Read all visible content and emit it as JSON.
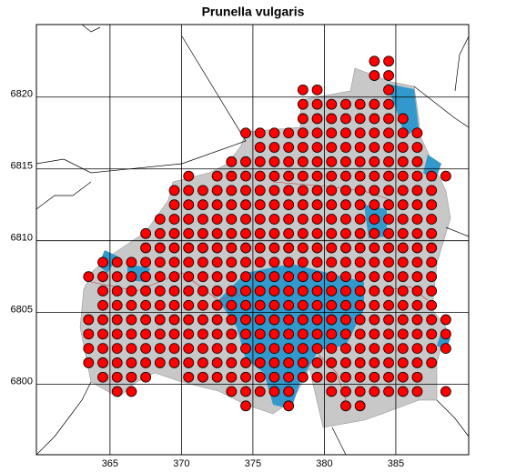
{
  "chart_data": {
    "type": "scatter",
    "title": "Prunella vulgaris",
    "color": "#ff0000",
    "xlim": [
      359.85,
      390.1
    ],
    "ylim": [
      6795.1,
      6825.05
    ],
    "xticks": [
      365,
      370,
      375,
      380,
      385
    ],
    "yticks": [
      6800,
      6805,
      6810,
      6815,
      6820
    ],
    "grid": true,
    "rows": [
      {
        "y": 6822.5,
        "x": [
          383.5,
          384.5
        ]
      },
      {
        "y": 6821.5,
        "x": [
          383.5,
          384.5
        ]
      },
      {
        "y": 6820.5,
        "x": [
          378.5,
          379.5,
          384.5
        ]
      },
      {
        "y": 6819.5,
        "x": [
          378.5,
          379.5,
          380.5,
          381.5,
          382.5,
          383.5,
          384.5
        ]
      },
      {
        "y": 6818.5,
        "x": [
          378.5,
          379.5,
          380.5,
          381.5,
          382.5,
          383.5,
          384.5,
          385.5
        ]
      },
      {
        "y": 6817.5,
        "x": [
          374.5,
          375.5,
          376.5,
          377.5,
          378.5,
          379.5,
          380.5,
          381.5,
          382.5,
          383.5,
          384.5,
          385.5,
          386.5
        ]
      },
      {
        "y": 6816.5,
        "x": [
          375.5,
          376.5,
          377.5,
          378.5,
          379.5,
          380.5,
          381.5,
          382.5,
          383.5,
          384.5,
          385.5,
          386.5
        ]
      },
      {
        "y": 6815.5,
        "x": [
          373.5,
          374.5,
          375.5,
          376.5,
          377.5,
          378.5,
          379.5,
          380.5,
          381.5,
          382.5,
          383.5,
          384.5,
          385.5,
          386.5
        ]
      },
      {
        "y": 6814.5,
        "x": [
          370.5,
          372.5,
          373.5,
          374.5,
          375.5,
          376.5,
          377.5,
          378.5,
          379.5,
          380.5,
          381.5,
          382.5,
          383.5,
          384.5,
          385.5,
          386.5,
          387.5,
          388.5
        ]
      },
      {
        "y": 6813.5,
        "x": [
          369.5,
          370.5,
          371.5,
          372.5,
          373.5,
          374.5,
          375.5,
          376.5,
          377.5,
          378.5,
          379.5,
          380.5,
          381.5,
          382.5,
          383.5,
          384.5,
          385.5,
          386.5,
          387.5
        ]
      },
      {
        "y": 6812.5,
        "x": [
          369.5,
          370.5,
          371.5,
          372.5,
          373.5,
          374.5,
          375.5,
          376.5,
          377.5,
          378.5,
          379.5,
          380.5,
          381.5,
          382.5,
          383.5,
          384.5,
          385.5,
          386.5,
          387.5
        ]
      },
      {
        "y": 6811.5,
        "x": [
          368.5,
          369.5,
          370.5,
          371.5,
          372.5,
          373.5,
          374.5,
          375.5,
          376.5,
          377.5,
          378.5,
          379.5,
          380.5,
          381.5,
          382.5,
          383.5,
          384.5,
          385.5,
          386.5,
          387.5
        ]
      },
      {
        "y": 6810.5,
        "x": [
          367.5,
          368.5,
          369.5,
          370.5,
          371.5,
          372.5,
          373.5,
          374.5,
          375.5,
          376.5,
          377.5,
          378.5,
          379.5,
          380.5,
          381.5,
          382.5,
          383.5,
          384.5,
          385.5,
          386.5,
          387.5
        ]
      },
      {
        "y": 6809.5,
        "x": [
          367.5,
          368.5,
          369.5,
          370.5,
          371.5,
          372.5,
          373.5,
          374.5,
          375.5,
          376.5,
          377.5,
          378.5,
          379.5,
          380.5,
          381.5,
          382.5,
          383.5,
          384.5,
          385.5,
          386.5,
          387.5
        ]
      },
      {
        "y": 6808.5,
        "x": [
          364.5,
          365.5,
          366.5,
          367.5,
          368.5,
          369.5,
          370.5,
          371.5,
          372.5,
          373.5,
          374.5,
          375.5,
          376.5,
          377.5,
          378.5,
          379.5,
          380.5,
          381.5,
          382.5,
          383.5,
          384.5,
          385.5,
          386.5,
          387.5
        ]
      },
      {
        "y": 6807.5,
        "x": [
          363.5,
          364.5,
          365.5,
          366.5,
          367.5,
          368.5,
          369.5,
          370.5,
          371.5,
          372.5,
          373.5,
          374.5,
          375.5,
          376.5,
          377.5,
          378.5,
          379.5,
          380.5,
          381.5,
          382.5,
          383.5,
          384.5,
          385.5,
          386.5,
          387.5
        ]
      },
      {
        "y": 6806.5,
        "x": [
          364.5,
          365.5,
          366.5,
          367.5,
          368.5,
          369.5,
          370.5,
          371.5,
          372.5,
          373.5,
          374.5,
          375.5,
          376.5,
          377.5,
          378.5,
          379.5,
          380.5,
          381.5,
          382.5,
          383.5,
          384.5,
          385.5,
          386.5,
          387.5
        ]
      },
      {
        "y": 6805.5,
        "x": [
          364.5,
          365.5,
          366.5,
          367.5,
          368.5,
          369.5,
          370.5,
          371.5,
          372.5,
          373.5,
          374.5,
          375.5,
          376.5,
          377.5,
          378.5,
          379.5,
          380.5,
          381.5,
          382.5,
          383.5,
          384.5,
          385.5,
          386.5,
          387.5
        ]
      },
      {
        "y": 6804.5,
        "x": [
          363.5,
          364.5,
          365.5,
          366.5,
          367.5,
          368.5,
          369.5,
          370.5,
          371.5,
          372.5,
          373.5,
          374.5,
          375.5,
          376.5,
          377.5,
          378.5,
          379.5,
          380.5,
          381.5,
          382.5,
          383.5,
          384.5,
          385.5,
          386.5,
          387.5,
          388.5
        ]
      },
      {
        "y": 6803.5,
        "x": [
          363.5,
          364.5,
          365.5,
          366.5,
          367.5,
          368.5,
          369.5,
          370.5,
          371.5,
          372.5,
          373.5,
          374.5,
          375.5,
          376.5,
          377.5,
          378.5,
          379.5,
          380.5,
          381.5,
          382.5,
          383.5,
          384.5,
          385.5,
          386.5,
          387.5,
          388.5
        ]
      },
      {
        "y": 6802.5,
        "x": [
          363.5,
          364.5,
          365.5,
          366.5,
          367.5,
          368.5,
          369.5,
          370.5,
          371.5,
          372.5,
          373.5,
          374.5,
          375.5,
          376.5,
          377.5,
          378.5,
          379.5,
          380.5,
          381.5,
          382.5,
          383.5,
          384.5,
          385.5,
          386.5,
          387.5,
          388.5
        ]
      },
      {
        "y": 6801.5,
        "x": [
          363.5,
          364.5,
          365.5,
          366.5,
          367.5,
          368.5,
          369.5,
          370.5,
          371.5,
          372.5,
          373.5,
          374.5,
          375.5,
          376.5,
          377.5,
          378.5,
          379.5,
          380.5,
          381.5,
          382.5,
          383.5,
          384.5,
          385.5,
          386.5,
          387.5
        ]
      },
      {
        "y": 6800.5,
        "x": [
          364.5,
          365.5,
          366.5,
          367.5,
          370.5,
          371.5,
          372.5,
          373.5,
          374.5,
          375.5,
          376.5,
          377.5,
          378.5,
          379.5,
          380.5,
          381.5,
          382.5,
          383.5,
          384.5,
          385.5,
          386.5
        ]
      },
      {
        "y": 6799.5,
        "x": [
          365.5,
          366.5,
          373.5,
          374.5,
          375.5,
          376.5,
          377.5,
          380.5,
          381.5,
          382.5,
          383.5,
          384.5,
          385.5,
          386.5,
          388.5
        ]
      },
      {
        "y": 6798.5,
        "x": [
          374.5,
          377.5,
          381.5,
          382.5
        ]
      }
    ]
  }
}
